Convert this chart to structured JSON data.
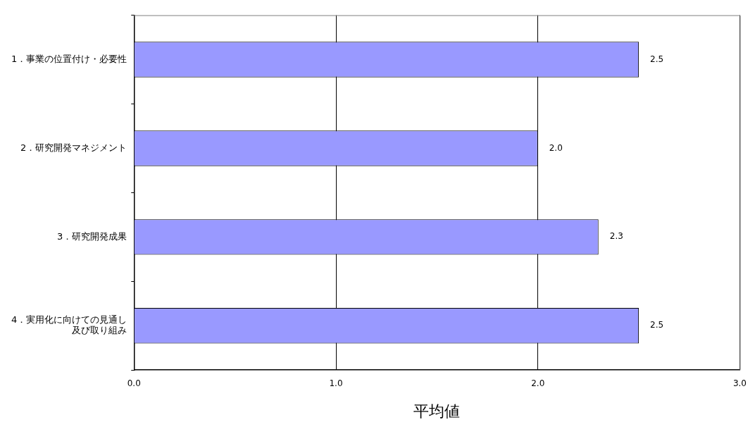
{
  "chart_data": {
    "type": "bar",
    "orientation": "horizontal",
    "xlabel": "平均値",
    "categories": [
      "1．事業の位置付け・必要性",
      "2．研究開発マネジメント",
      "3．研究開発成果",
      "4．実用化に向けての見通し及び取り組み"
    ],
    "values": [
      2.5,
      2.0,
      2.3,
      2.5
    ],
    "color": "#9999ff",
    "value_labels": [
      "2.5",
      "2.0",
      "2.3",
      "2.5"
    ],
    "xlim": [
      0,
      3
    ],
    "xticks": [
      {
        "value": 0,
        "label": "0.0"
      },
      {
        "value": 1,
        "label": "1.0"
      },
      {
        "value": 2,
        "label": "2.0"
      },
      {
        "value": 3,
        "label": "3.0"
      }
    ],
    "grid": "x",
    "legend": false
  }
}
